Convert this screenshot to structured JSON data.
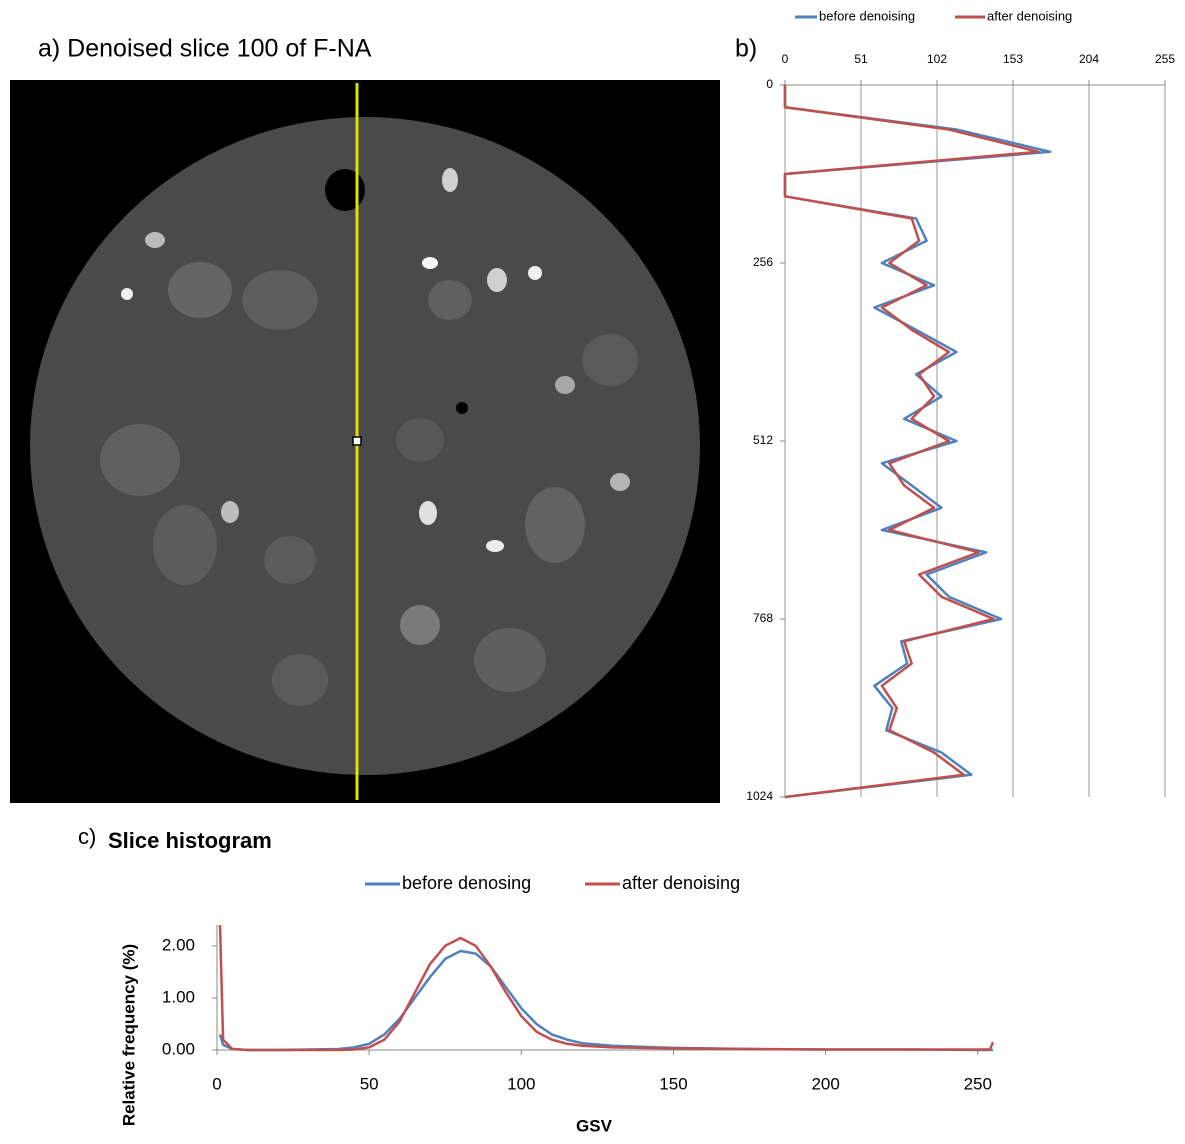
{
  "panel_a": {
    "title": "a) Denoised slice 100 of F-NA"
  },
  "chart_data": [
    {
      "type": "line",
      "label": "b)",
      "orientation": "horizontal",
      "x": [
        0,
        32,
        64,
        96,
        128,
        160,
        192,
        224,
        256,
        288,
        320,
        352,
        384,
        416,
        448,
        480,
        512,
        544,
        576,
        608,
        640,
        672,
        704,
        736,
        768,
        800,
        832,
        864,
        896,
        928,
        960,
        992,
        1024
      ],
      "xlim": [
        0,
        1024
      ],
      "xticks": [
        0,
        256,
        512,
        768,
        1024
      ],
      "ylim": [
        0,
        255
      ],
      "yticks": [
        0,
        51,
        102,
        153,
        204,
        255
      ],
      "grid": true,
      "series": [
        {
          "name": "before denoising",
          "color": "#4f81bd",
          "values": [
            0,
            0,
            115,
            178,
            0,
            0,
            88,
            95,
            65,
            100,
            60,
            88,
            115,
            88,
            105,
            80,
            115,
            65,
            85,
            105,
            65,
            135,
            95,
            110,
            145,
            78,
            82,
            60,
            72,
            68,
            105,
            125,
            0
          ]
        },
        {
          "name": "after denoising",
          "color": "#c0504d",
          "values": [
            0,
            0,
            110,
            170,
            0,
            0,
            85,
            90,
            70,
            95,
            65,
            85,
            110,
            90,
            100,
            85,
            110,
            70,
            80,
            100,
            70,
            130,
            90,
            105,
            140,
            80,
            85,
            65,
            75,
            70,
            100,
            120,
            0
          ]
        }
      ]
    },
    {
      "type": "line",
      "label": "c)",
      "title": "Slice histogram",
      "xlabel": "GSV",
      "ylabel": "Relative frequency (%)",
      "x": [
        1,
        2,
        5,
        10,
        20,
        30,
        40,
        45,
        50,
        55,
        60,
        65,
        70,
        75,
        80,
        85,
        90,
        95,
        100,
        105,
        110,
        115,
        120,
        130,
        140,
        150,
        175,
        200,
        225,
        250,
        254,
        255
      ],
      "xlim": [
        0,
        255
      ],
      "xticks": [
        0,
        50,
        100,
        150,
        200,
        250
      ],
      "ylim": [
        0,
        2.4
      ],
      "yticks": [
        {
          "value": 0,
          "label": "0.00"
        },
        {
          "value": 1,
          "label": "1.00"
        },
        {
          "value": 2,
          "label": "2.00"
        }
      ],
      "grid": false,
      "series": [
        {
          "name": "before denosing",
          "color": "#4f81bd",
          "values": [
            0.3,
            0.1,
            0.02,
            0,
            0,
            0.01,
            0.02,
            0.05,
            0.12,
            0.3,
            0.6,
            1.0,
            1.4,
            1.75,
            1.9,
            1.85,
            1.6,
            1.2,
            0.8,
            0.5,
            0.3,
            0.2,
            0.13,
            0.08,
            0.06,
            0.04,
            0.02,
            0.01,
            0.01,
            0,
            0,
            0
          ]
        },
        {
          "name": "after denoising",
          "color": "#c0504d",
          "values": [
            2.4,
            0.2,
            0.02,
            0,
            0,
            0,
            0,
            0.01,
            0.05,
            0.2,
            0.55,
            1.1,
            1.65,
            2.0,
            2.15,
            2.0,
            1.6,
            1.1,
            0.65,
            0.35,
            0.2,
            0.12,
            0.08,
            0.05,
            0.04,
            0.03,
            0.02,
            0.01,
            0.01,
            0.01,
            0.01,
            0.15
          ]
        }
      ]
    }
  ]
}
